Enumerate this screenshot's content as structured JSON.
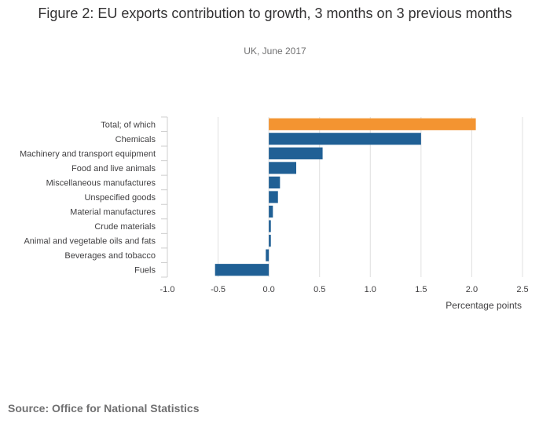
{
  "header": {
    "title": "Figure 2: EU exports contribution to growth, 3 months on 3 previous months",
    "subtitle": "UK, June 2017"
  },
  "footer": {
    "source": "Source: Office for National Statistics"
  },
  "colors": {
    "highlight": "#f39431",
    "series": "#206095",
    "grid": "#e0e0e0",
    "text": "#414042"
  },
  "chart_data": {
    "type": "bar",
    "orientation": "horizontal",
    "title": "Figure 2: EU exports contribution to growth, 3 months on 3 previous months",
    "subtitle": "UK, June 2017",
    "xlabel": "Percentage points",
    "ylabel": "",
    "xlim": [
      -1.0,
      2.5
    ],
    "xticks": [
      -1.0,
      -0.5,
      0.0,
      0.5,
      1.0,
      1.5,
      2.0,
      2.5
    ],
    "xtick_labels": [
      "-1.0",
      "-0.5",
      "0.0",
      "0.5",
      "1.0",
      "1.5",
      "2.0",
      "2.5"
    ],
    "grid": true,
    "categories": [
      "Total; of which",
      "Chemicals",
      "Machinery and transport equipment",
      "Food and live animals",
      "Miscellaneous manufactures",
      "Unspecified goods",
      "Material manufactures",
      "Crude materials",
      "Animal and vegetable oils and fats",
      "Beverages and tobacco",
      "Fuels"
    ],
    "values": [
      2.04,
      1.5,
      0.53,
      0.27,
      0.11,
      0.09,
      0.04,
      0.02,
      0.02,
      -0.03,
      -0.53
    ],
    "highlight_index": 0
  }
}
